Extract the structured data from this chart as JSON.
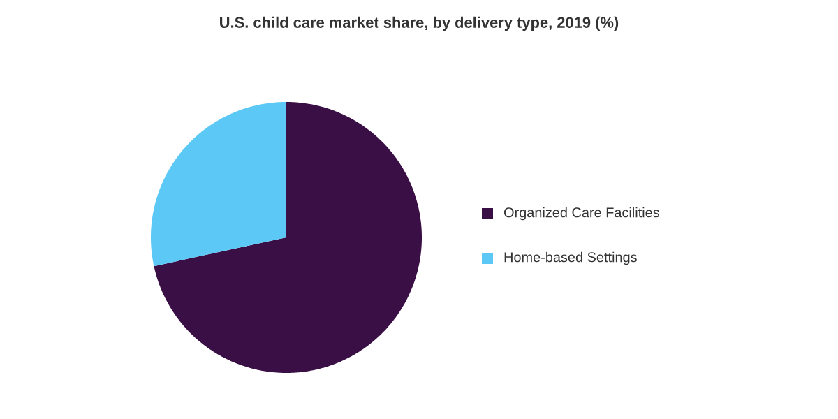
{
  "chart_data": {
    "type": "pie",
    "title": "U.S. child care market share, by delivery type, 2019 (%)",
    "categories": [
      "Organized Care Facilities",
      "Home-based Settings"
    ],
    "values": [
      71.6,
      28.4
    ],
    "colors": [
      "#3a0f45",
      "#5bc8f5"
    ],
    "legend": "right"
  }
}
